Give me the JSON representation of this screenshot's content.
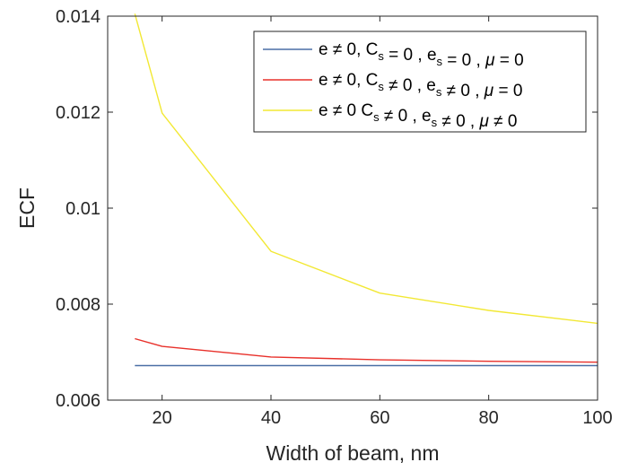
{
  "chart_data": {
    "type": "line",
    "xlabel": "Width of beam, nm",
    "ylabel": "ECF",
    "xlim": [
      10,
      100
    ],
    "ylim": [
      0.006,
      0.014
    ],
    "xticks": [
      20,
      40,
      60,
      80,
      100
    ],
    "xtick_labels": [
      "20",
      "40",
      "60",
      "80",
      "100"
    ],
    "yticks": [
      0.006,
      0.008,
      0.01,
      0.012,
      0.014
    ],
    "ytick_labels": [
      "0.006",
      "0.008",
      "0.01",
      "0.012",
      "0.014"
    ],
    "legend_position": "top-right",
    "grid": false,
    "series": [
      {
        "name": "e ≠ 0, C_s = 0 , e_s = 0 , μ = 0",
        "color": "#4a6fa5",
        "x": [
          15,
          20,
          40,
          60,
          80,
          100
        ],
        "y": [
          0.00672,
          0.00672,
          0.00672,
          0.00672,
          0.00672,
          0.00672
        ]
      },
      {
        "name": "e ≠ 0, C_s ≠ 0 , e_s ≠ 0 , μ = 0",
        "color": "#e8302a",
        "x": [
          15,
          20,
          40,
          60,
          80,
          100
        ],
        "y": [
          0.00728,
          0.00712,
          0.0069,
          0.00684,
          0.00681,
          0.00679
        ]
      },
      {
        "name": "e ≠ 0 C_s ≠ 0 , e_s ≠ 0 , μ ≠ 0",
        "color": "#f2e834",
        "x": [
          15,
          20,
          40,
          60,
          80,
          100
        ],
        "y": [
          0.01405,
          0.01198,
          0.0091,
          0.00823,
          0.00787,
          0.0076
        ]
      }
    ]
  }
}
